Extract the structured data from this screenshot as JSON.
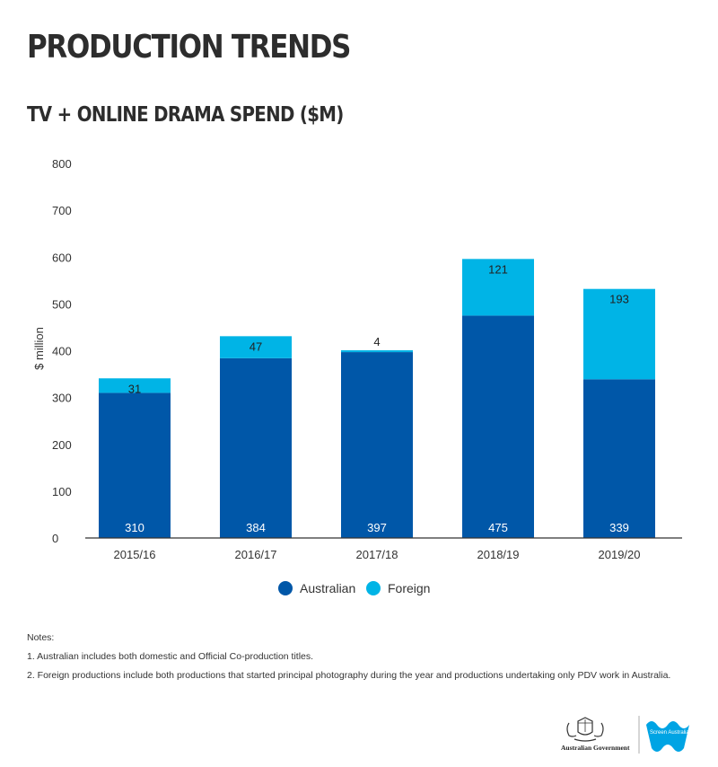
{
  "page_title": "PRODUCTION TRENDS",
  "chart_data": {
    "type": "bar",
    "stacked": true,
    "title": "TV + ONLINE DRAMA SPEND ($M)",
    "xlabel": "",
    "ylabel": "$ million",
    "ylim": [
      0,
      800
    ],
    "yticks": [
      0,
      100,
      200,
      300,
      400,
      500,
      600,
      700,
      800
    ],
    "categories": [
      "2015/16",
      "2016/17",
      "2017/18",
      "2018/19",
      "2019/20"
    ],
    "series": [
      {
        "name": "Australian",
        "values": [
          310,
          384,
          397,
          475,
          339
        ],
        "color": "#0057a8"
      },
      {
        "name": "Foreign",
        "values": [
          31,
          47,
          4,
          121,
          193
        ],
        "color": "#00b4e6"
      }
    ],
    "legend_position": "bottom-center",
    "grid": false
  },
  "notes": {
    "heading": "Notes:",
    "items": [
      "1. Australian includes both domestic and Official Co-production titles.",
      "2. Foreign productions include both productions that started principal photography during the year and productions undertaking only PDV work in Australia."
    ]
  },
  "logos": {
    "government_label": "Australian Government",
    "screen_australia_label": "Screen Australia"
  }
}
